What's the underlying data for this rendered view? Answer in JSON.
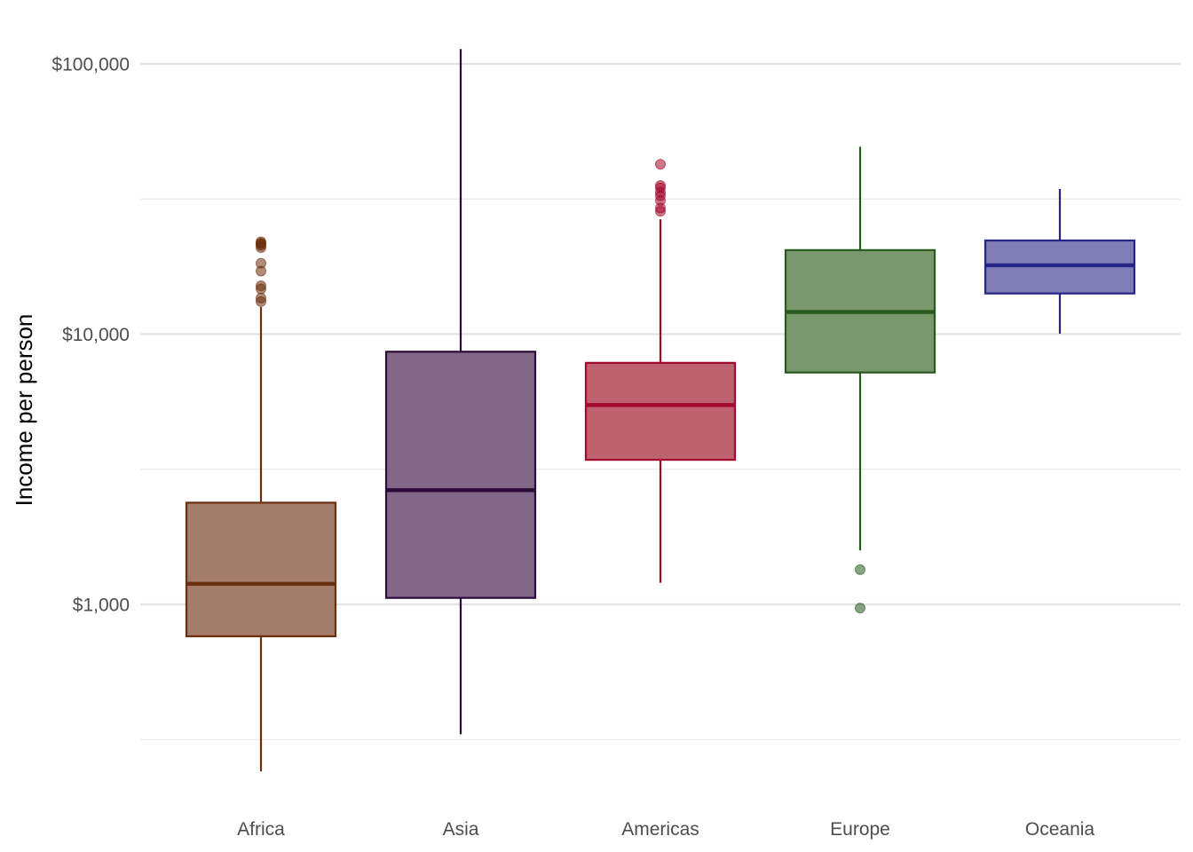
{
  "chart_data": {
    "type": "boxplot",
    "title": "",
    "xlabel": "",
    "ylabel": "Income per person",
    "y_scale": "log10",
    "ylim": [
      200,
      115000
    ],
    "y_ticks": [
      {
        "value": 1000,
        "label": "$1,000"
      },
      {
        "value": 10000,
        "label": "$10,000"
      },
      {
        "value": 100000,
        "label": "$100,000"
      }
    ],
    "y_minor_gridlines": [
      316,
      3162,
      31623
    ],
    "grid": true,
    "legend": "none",
    "categories": [
      "Africa",
      "Asia",
      "Americas",
      "Europe",
      "Oceania"
    ],
    "boxes": [
      {
        "category": "Africa",
        "color": "#6b2f0f",
        "fill": "#a27d69",
        "whisker_low": 241,
        "q1": 762,
        "median": 1192,
        "q3": 2378,
        "whisker_high": 12600,
        "outliers": [
          13200,
          13600,
          14700,
          15100,
          17100,
          18300,
          20900,
          21300,
          21600,
          21700,
          21950
        ]
      },
      {
        "category": "Asia",
        "color": "#2d0a3a",
        "fill": "#826688",
        "whisker_low": 331,
        "q1": 1057,
        "median": 2647,
        "q3": 8609,
        "whisker_high": 113500,
        "outliers": []
      },
      {
        "category": "Americas",
        "color": "#a3092c",
        "fill": "#bf6270",
        "whisker_low": 1202,
        "q1": 3428,
        "median": 5466,
        "q3": 7830,
        "whisker_high": 26600,
        "outliers": [
          28500,
          29300,
          31200,
          32500,
          33500,
          34800,
          35500,
          42500
        ]
      },
      {
        "category": "Europe",
        "color": "#275b1e",
        "fill": "#79986e",
        "whisker_low": 1585,
        "q1": 7213,
        "median": 12082,
        "q3": 20461,
        "whisker_high": 49350,
        "outliers": [
          969,
          1344
        ]
      },
      {
        "category": "Oceania",
        "color": "#252585",
        "fill": "#7e7db6",
        "whisker_low": 10040,
        "q1": 14142,
        "median": 17983,
        "q3": 22214,
        "whisker_high": 34435,
        "outliers": []
      }
    ]
  }
}
